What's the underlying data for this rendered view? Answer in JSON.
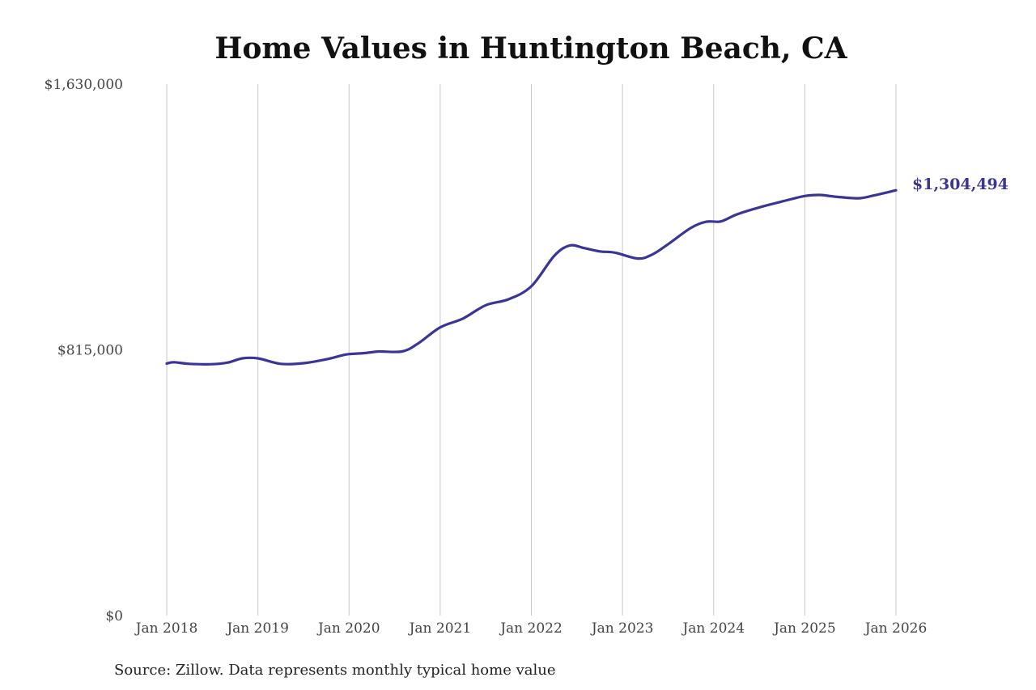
{
  "chart_data": {
    "type": "line",
    "title": "Home Values in Huntington Beach, CA",
    "source_note": "Source: Zillow. Data represents monthly typical home value",
    "ylim": [
      0,
      1630000
    ],
    "y_ticks": [
      {
        "value": 0,
        "label": "$0"
      },
      {
        "value": 815000,
        "label": "$815,000"
      },
      {
        "value": 1630000,
        "label": "$1,630,000"
      }
    ],
    "x_ticks": [
      {
        "value": 2018,
        "label": "Jan 2018"
      },
      {
        "value": 2019,
        "label": "Jan 2019"
      },
      {
        "value": 2020,
        "label": "Jan 2020"
      },
      {
        "value": 2021,
        "label": "Jan 2021"
      },
      {
        "value": 2022,
        "label": "Jan 2022"
      },
      {
        "value": 2023,
        "label": "Jan 2023"
      },
      {
        "value": 2024,
        "label": "Jan 2024"
      },
      {
        "value": 2025,
        "label": "Jan 2025"
      },
      {
        "value": 2026,
        "label": "Jan 2026"
      }
    ],
    "xlim": [
      2018,
      2026
    ],
    "grid": "vertical",
    "line_color": "#3a3596",
    "end_label": "$1,304,494",
    "series": [
      {
        "points": [
          [
            2018.0,
            773000
          ],
          [
            2018.08,
            777000
          ],
          [
            2018.25,
            772000
          ],
          [
            2018.5,
            771000
          ],
          [
            2018.67,
            776000
          ],
          [
            2018.83,
            789000
          ],
          [
            2019.0,
            789000
          ],
          [
            2019.25,
            772000
          ],
          [
            2019.5,
            774000
          ],
          [
            2019.75,
            786000
          ],
          [
            2019.92,
            798000
          ],
          [
            2020.0,
            802000
          ],
          [
            2020.17,
            805000
          ],
          [
            2020.33,
            810000
          ],
          [
            2020.58,
            810000
          ],
          [
            2020.75,
            833000
          ],
          [
            2021.0,
            884000
          ],
          [
            2021.25,
            911000
          ],
          [
            2021.5,
            952000
          ],
          [
            2021.75,
            970000
          ],
          [
            2022.0,
            1010000
          ],
          [
            2022.25,
            1103000
          ],
          [
            2022.42,
            1135000
          ],
          [
            2022.58,
            1127000
          ],
          [
            2022.75,
            1117000
          ],
          [
            2022.92,
            1113000
          ],
          [
            2023.17,
            1095000
          ],
          [
            2023.33,
            1108000
          ],
          [
            2023.5,
            1139000
          ],
          [
            2023.75,
            1189000
          ],
          [
            2023.92,
            1208000
          ],
          [
            2024.08,
            1209000
          ],
          [
            2024.25,
            1230000
          ],
          [
            2024.5,
            1252000
          ],
          [
            2024.75,
            1270000
          ],
          [
            2025.0,
            1287000
          ],
          [
            2025.17,
            1290000
          ],
          [
            2025.33,
            1285000
          ],
          [
            2025.58,
            1280000
          ],
          [
            2025.75,
            1288000
          ],
          [
            2026.0,
            1304494
          ]
        ]
      }
    ]
  }
}
